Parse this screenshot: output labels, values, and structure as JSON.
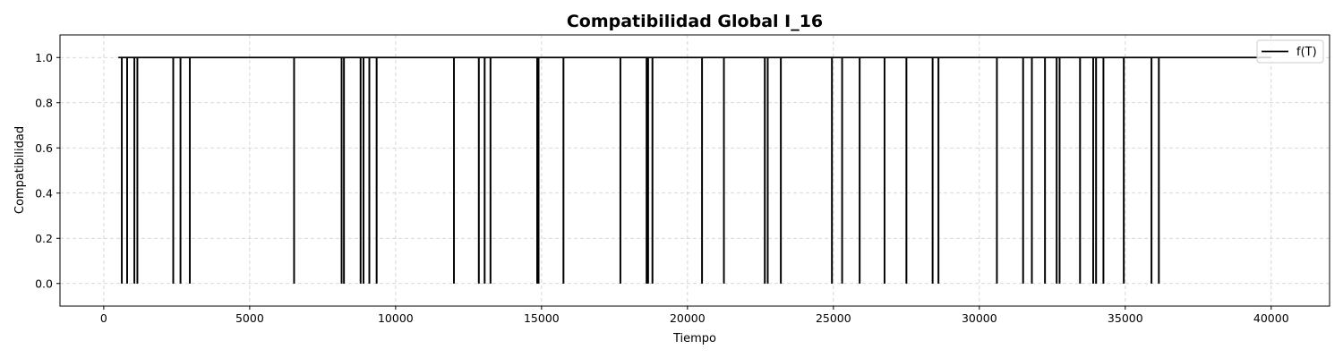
{
  "chart_data": {
    "type": "line",
    "title": "Compatibilidad Global I_16",
    "xlabel": "Tiempo",
    "ylabel": "Compatibilidad",
    "xlim": [
      -1500,
      42000
    ],
    "ylim": [
      -0.1,
      1.1
    ],
    "xticks": [
      0,
      5000,
      10000,
      15000,
      20000,
      25000,
      30000,
      35000,
      40000
    ],
    "xtick_labels": [
      "0",
      "5000",
      "10000",
      "15000",
      "20000",
      "25000",
      "30000",
      "35000",
      "40000"
    ],
    "yticks": [
      0.0,
      0.2,
      0.4,
      0.6,
      0.8,
      1.0
    ],
    "ytick_labels": [
      "0.0",
      "0.2",
      "0.4",
      "0.6",
      "0.8",
      "1.0"
    ],
    "grid": true,
    "legend_position": "top-right",
    "series": [
      {
        "name": "f(T)",
        "color": "#000000",
        "x_start": 500,
        "x_end": 40000,
        "baseline": 1.0,
        "drop_value": 0.0,
        "drop_times": [
          620,
          800,
          1050,
          1150,
          2380,
          2630,
          2950,
          6520,
          8150,
          8230,
          8800,
          8900,
          9100,
          9350,
          12000,
          12850,
          13050,
          13250,
          14850,
          14900,
          15750,
          17700,
          18600,
          18650,
          18800,
          20500,
          21250,
          22650,
          22750,
          23200,
          24950,
          25300,
          25900,
          26750,
          27500,
          28400,
          28600,
          30600,
          31500,
          31800,
          32250,
          32650,
          32750,
          33450,
          33900,
          34000,
          34250,
          34950,
          35900,
          36150
        ]
      }
    ]
  }
}
